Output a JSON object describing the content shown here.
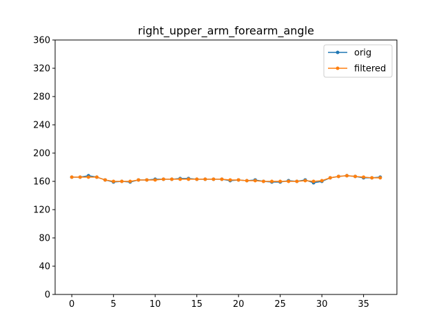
{
  "chart_data": {
    "type": "line",
    "title": "right_upper_arm_forearm_angle",
    "xlabel": "",
    "ylabel": "",
    "xlim": [
      -2,
      39
    ],
    "ylim": [
      0,
      360
    ],
    "x_ticks": [
      0,
      5,
      10,
      15,
      20,
      25,
      30,
      35
    ],
    "y_ticks": [
      0,
      40,
      80,
      120,
      160,
      200,
      240,
      280,
      320,
      360
    ],
    "grid": false,
    "legend_position": "top-right",
    "x": [
      0,
      1,
      2,
      3,
      4,
      5,
      6,
      7,
      8,
      9,
      10,
      11,
      12,
      13,
      14,
      15,
      16,
      17,
      18,
      19,
      20,
      21,
      22,
      23,
      24,
      25,
      26,
      27,
      28,
      29,
      30,
      31,
      32,
      33,
      34,
      35,
      36,
      37
    ],
    "series": [
      {
        "name": "orig",
        "color": "#1f77b4",
        "marker": "circle",
        "values": [
          166,
          166,
          168,
          166,
          162,
          159,
          160,
          159,
          162,
          162,
          163,
          163,
          163,
          164,
          164,
          163,
          163,
          163,
          163,
          161,
          162,
          161,
          162,
          160,
          159,
          159,
          161,
          160,
          162,
          158,
          160,
          165,
          167,
          168,
          167,
          165,
          165,
          166
        ]
      },
      {
        "name": "filtered",
        "color": "#ff7f0e",
        "marker": "circle",
        "values": [
          166,
          166,
          166,
          166,
          162,
          160,
          160,
          160,
          162,
          162,
          162,
          163,
          163,
          163,
          163,
          163,
          163,
          163,
          163,
          162,
          162,
          161,
          161,
          160,
          160,
          160,
          160,
          160,
          161,
          160,
          161,
          165,
          167,
          168,
          167,
          166,
          165,
          165
        ]
      }
    ]
  }
}
